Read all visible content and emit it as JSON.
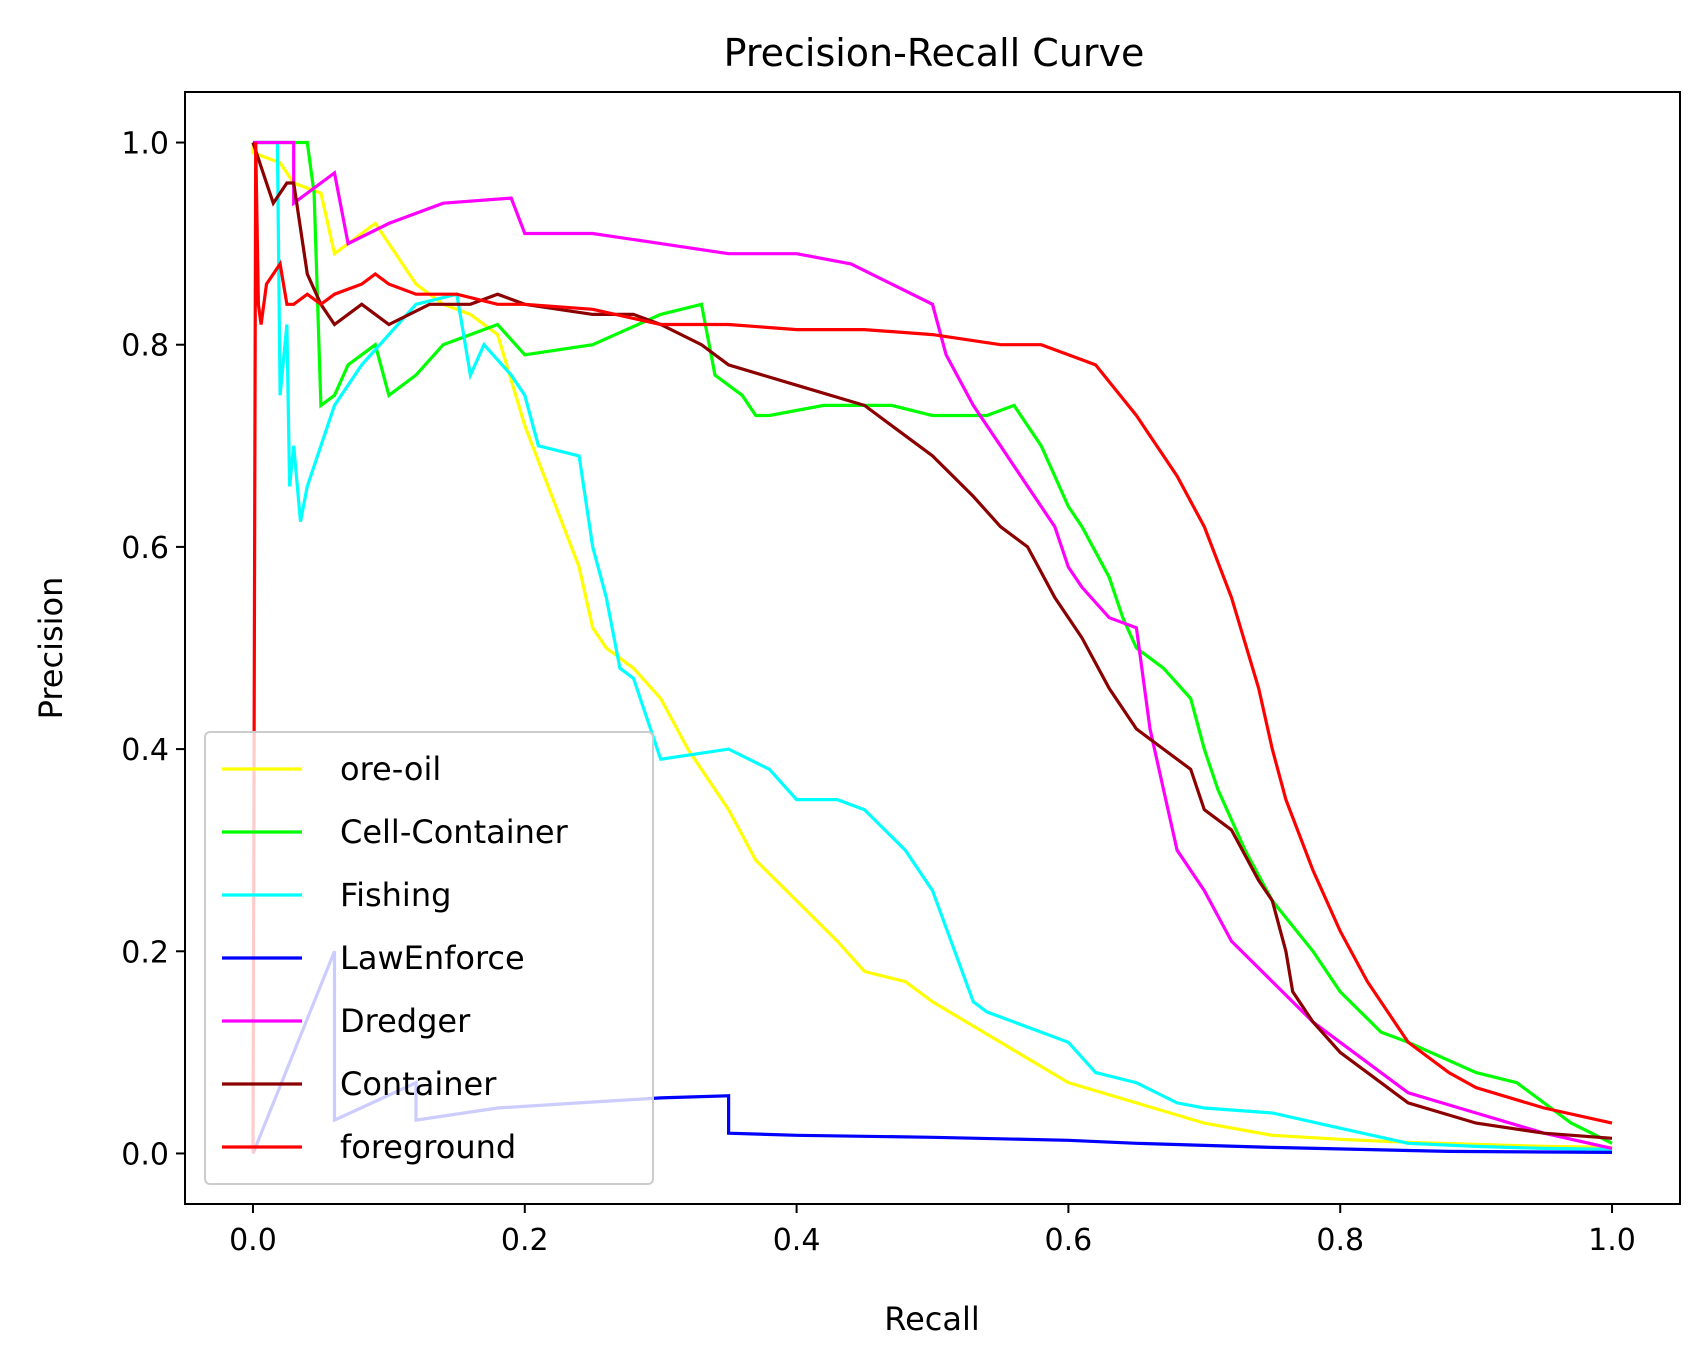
{
  "chart_data": {
    "type": "line",
    "title": "Precision-Recall Curve",
    "xlabel": "Recall",
    "ylabel": "Precision",
    "xlim": [
      -0.05,
      1.05
    ],
    "ylim": [
      -0.05,
      1.05
    ],
    "xticks": [
      0.0,
      0.2,
      0.4,
      0.6,
      0.8,
      1.0
    ],
    "yticks": [
      0.0,
      0.2,
      0.4,
      0.6,
      0.8,
      1.0
    ],
    "xtick_labels": [
      "0.0",
      "0.2",
      "0.4",
      "0.6",
      "0.8",
      "1.0"
    ],
    "ytick_labels": [
      "0.0",
      "0.2",
      "0.4",
      "0.6",
      "0.8",
      "1.0"
    ],
    "grid": false,
    "legend_position": "lower-left",
    "series": [
      {
        "name": "ore-oil",
        "color": "#ffff00",
        "x": [
          0.0,
          0.0,
          0.02,
          0.03,
          0.05,
          0.06,
          0.07,
          0.09,
          0.1,
          0.12,
          0.14,
          0.16,
          0.18,
          0.2,
          0.22,
          0.24,
          0.25,
          0.26,
          0.28,
          0.3,
          0.32,
          0.35,
          0.37,
          0.4,
          0.43,
          0.45,
          0.48,
          0.5,
          0.55,
          0.6,
          0.65,
          0.7,
          0.75,
          0.8,
          0.85,
          0.9,
          0.95,
          1.0
        ],
        "y": [
          1.0,
          0.99,
          0.98,
          0.96,
          0.95,
          0.89,
          0.9,
          0.92,
          0.9,
          0.86,
          0.84,
          0.83,
          0.81,
          0.72,
          0.65,
          0.58,
          0.52,
          0.5,
          0.48,
          0.45,
          0.4,
          0.34,
          0.29,
          0.25,
          0.21,
          0.18,
          0.17,
          0.15,
          0.11,
          0.07,
          0.05,
          0.03,
          0.018,
          0.014,
          0.011,
          0.009,
          0.007,
          0.006
        ]
      },
      {
        "name": "Cell-Container",
        "color": "#00ff00",
        "x": [
          0.0,
          0.04,
          0.045,
          0.05,
          0.06,
          0.07,
          0.08,
          0.09,
          0.1,
          0.12,
          0.14,
          0.16,
          0.18,
          0.2,
          0.25,
          0.3,
          0.33,
          0.34,
          0.36,
          0.37,
          0.38,
          0.42,
          0.47,
          0.5,
          0.54,
          0.56,
          0.58,
          0.6,
          0.61,
          0.63,
          0.64,
          0.65,
          0.67,
          0.69,
          0.7,
          0.71,
          0.73,
          0.75,
          0.78,
          0.8,
          0.83,
          0.85,
          0.9,
          0.93,
          0.97,
          1.0
        ],
        "y": [
          1.0,
          1.0,
          0.95,
          0.74,
          0.75,
          0.78,
          0.79,
          0.8,
          0.75,
          0.77,
          0.8,
          0.81,
          0.82,
          0.79,
          0.8,
          0.83,
          0.84,
          0.77,
          0.75,
          0.73,
          0.73,
          0.74,
          0.74,
          0.73,
          0.73,
          0.74,
          0.7,
          0.64,
          0.62,
          0.57,
          0.53,
          0.5,
          0.48,
          0.45,
          0.4,
          0.36,
          0.3,
          0.25,
          0.2,
          0.16,
          0.12,
          0.11,
          0.08,
          0.07,
          0.03,
          0.01
        ]
      },
      {
        "name": "Fishing",
        "color": "#00ffff",
        "x": [
          0.0,
          0.018,
          0.02,
          0.025,
          0.027,
          0.03,
          0.035,
          0.04,
          0.05,
          0.06,
          0.08,
          0.1,
          0.12,
          0.15,
          0.16,
          0.17,
          0.19,
          0.2,
          0.21,
          0.24,
          0.25,
          0.26,
          0.27,
          0.28,
          0.3,
          0.35,
          0.38,
          0.4,
          0.41,
          0.43,
          0.45,
          0.48,
          0.5,
          0.53,
          0.54,
          0.56,
          0.6,
          0.62,
          0.65,
          0.68,
          0.7,
          0.75,
          0.8,
          0.85,
          0.9,
          0.95,
          1.0
        ],
        "y": [
          1.0,
          1.0,
          0.75,
          0.82,
          0.66,
          0.7,
          0.625,
          0.66,
          0.7,
          0.74,
          0.78,
          0.81,
          0.84,
          0.85,
          0.77,
          0.8,
          0.77,
          0.75,
          0.7,
          0.69,
          0.6,
          0.55,
          0.48,
          0.47,
          0.39,
          0.4,
          0.38,
          0.35,
          0.35,
          0.35,
          0.34,
          0.3,
          0.26,
          0.15,
          0.14,
          0.13,
          0.11,
          0.08,
          0.07,
          0.05,
          0.045,
          0.04,
          0.025,
          0.01,
          0.007,
          0.005,
          0.004
        ]
      },
      {
        "name": "LawEnforce",
        "color": "#0000ff",
        "x": [
          0.0,
          0.06,
          0.06,
          0.12,
          0.12,
          0.18,
          0.24,
          0.3,
          0.35,
          0.35,
          0.4,
          0.5,
          0.6,
          0.65,
          0.7,
          0.75,
          0.88,
          1.0
        ],
        "y": [
          0.0,
          0.2,
          0.033,
          0.07,
          0.033,
          0.045,
          0.05,
          0.055,
          0.057,
          0.02,
          0.018,
          0.016,
          0.013,
          0.01,
          0.008,
          0.006,
          0.002,
          0.001
        ]
      },
      {
        "name": "Dredger",
        "color": "#ff00ff",
        "x": [
          0.0,
          0.03,
          0.03,
          0.05,
          0.06,
          0.07,
          0.1,
          0.14,
          0.19,
          0.2,
          0.25,
          0.3,
          0.35,
          0.4,
          0.44,
          0.47,
          0.5,
          0.51,
          0.53,
          0.55,
          0.57,
          0.59,
          0.6,
          0.61,
          0.63,
          0.65,
          0.66,
          0.67,
          0.68,
          0.7,
          0.72,
          0.75,
          0.78,
          0.8,
          0.85,
          0.9,
          0.95,
          1.0
        ],
        "y": [
          1.0,
          1.0,
          0.94,
          0.96,
          0.97,
          0.9,
          0.92,
          0.94,
          0.945,
          0.91,
          0.91,
          0.9,
          0.89,
          0.89,
          0.88,
          0.86,
          0.84,
          0.79,
          0.74,
          0.7,
          0.66,
          0.62,
          0.58,
          0.56,
          0.53,
          0.52,
          0.42,
          0.36,
          0.3,
          0.26,
          0.21,
          0.17,
          0.13,
          0.11,
          0.06,
          0.04,
          0.02,
          0.005
        ]
      },
      {
        "name": "Container",
        "color": "#8b0000",
        "x": [
          0.0,
          0.01,
          0.015,
          0.025,
          0.03,
          0.04,
          0.05,
          0.06,
          0.08,
          0.1,
          0.13,
          0.16,
          0.18,
          0.2,
          0.25,
          0.28,
          0.3,
          0.33,
          0.35,
          0.4,
          0.45,
          0.48,
          0.5,
          0.53,
          0.55,
          0.57,
          0.59,
          0.61,
          0.63,
          0.65,
          0.67,
          0.69,
          0.7,
          0.72,
          0.74,
          0.75,
          0.76,
          0.765,
          0.77,
          0.78,
          0.8,
          0.83,
          0.85,
          0.9,
          0.95,
          1.0
        ],
        "y": [
          1.0,
          0.96,
          0.94,
          0.96,
          0.96,
          0.87,
          0.84,
          0.82,
          0.84,
          0.82,
          0.84,
          0.84,
          0.85,
          0.84,
          0.83,
          0.83,
          0.82,
          0.8,
          0.78,
          0.76,
          0.74,
          0.71,
          0.69,
          0.65,
          0.62,
          0.6,
          0.55,
          0.51,
          0.46,
          0.42,
          0.4,
          0.38,
          0.34,
          0.32,
          0.27,
          0.25,
          0.2,
          0.16,
          0.15,
          0.13,
          0.1,
          0.07,
          0.05,
          0.03,
          0.02,
          0.015
        ]
      },
      {
        "name": "foreground",
        "color": "#ff0000",
        "x": [
          0.0,
          0.002,
          0.004,
          0.006,
          0.01,
          0.015,
          0.02,
          0.025,
          0.03,
          0.04,
          0.05,
          0.06,
          0.08,
          0.09,
          0.1,
          0.12,
          0.15,
          0.18,
          0.2,
          0.25,
          0.3,
          0.35,
          0.4,
          0.45,
          0.5,
          0.55,
          0.58,
          0.6,
          0.62,
          0.65,
          0.68,
          0.7,
          0.72,
          0.74,
          0.75,
          0.76,
          0.78,
          0.8,
          0.82,
          0.85,
          0.88,
          0.9,
          0.95,
          1.0
        ],
        "y": [
          0.0,
          1.0,
          0.84,
          0.82,
          0.86,
          0.87,
          0.88,
          0.84,
          0.84,
          0.85,
          0.84,
          0.85,
          0.86,
          0.87,
          0.86,
          0.85,
          0.85,
          0.84,
          0.84,
          0.835,
          0.82,
          0.82,
          0.815,
          0.815,
          0.81,
          0.8,
          0.8,
          0.79,
          0.78,
          0.73,
          0.67,
          0.62,
          0.55,
          0.46,
          0.4,
          0.35,
          0.28,
          0.22,
          0.17,
          0.11,
          0.08,
          0.065,
          0.045,
          0.03
        ]
      }
    ]
  }
}
